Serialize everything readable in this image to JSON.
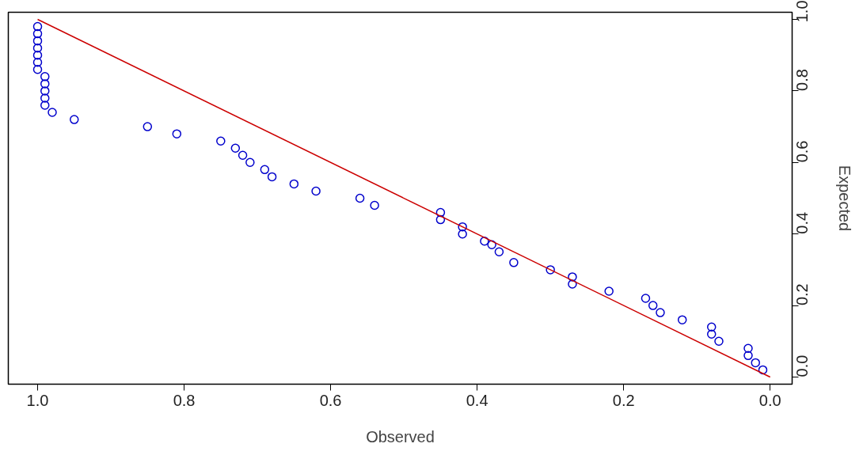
{
  "chart_data": {
    "type": "scatter",
    "xlabel": "Observed",
    "ylabel": "Expected",
    "xlim": [
      1.04,
      -0.03
    ],
    "ylim": [
      -0.02,
      1.02
    ],
    "xticks": [
      {
        "value": 0,
        "label": "0.0"
      },
      0.2,
      0.4,
      0.6,
      0.8,
      {
        "value": 1,
        "label": "1.0"
      }
    ],
    "yticks": [
      {
        "value": 0,
        "label": "0.0"
      },
      0.2,
      0.4,
      0.6,
      0.8,
      {
        "value": 1,
        "label": "1.0"
      }
    ],
    "grid": false,
    "marker": "circle",
    "series": [
      {
        "color": "#0000cc",
        "x": [
          1.0,
          1.0,
          1.0,
          1.0,
          1.0,
          1.0,
          1.0,
          0.99,
          0.99,
          0.99,
          0.99,
          0.99,
          0.98,
          0.95,
          0.85,
          0.81,
          0.75,
          0.73,
          0.72,
          0.71,
          0.69,
          0.68,
          0.65,
          0.62,
          0.56,
          0.54,
          0.45,
          0.45,
          0.42,
          0.42,
          0.39,
          0.38,
          0.37,
          0.35,
          0.3,
          0.27,
          0.27,
          0.22,
          0.17,
          0.16,
          0.15,
          0.12,
          0.08,
          0.08,
          0.07,
          0.03,
          0.03,
          0.02,
          0.01
        ],
        "values": [
          0.98,
          0.96,
          0.94,
          0.92,
          0.9,
          0.88,
          0.86,
          0.84,
          0.82,
          0.8,
          0.78,
          0.76,
          0.74,
          0.72,
          0.7,
          0.68,
          0.66,
          0.64,
          0.62,
          0.6,
          0.58,
          0.56,
          0.54,
          0.52,
          0.5,
          0.48,
          0.46,
          0.44,
          0.42,
          0.4,
          0.38,
          0.37,
          0.35,
          0.32,
          0.3,
          0.28,
          0.26,
          0.24,
          0.22,
          0.2,
          0.18,
          0.16,
          0.14,
          0.12,
          0.1,
          0.08,
          0.06,
          0.04,
          0.02
        ]
      },
      {
        "type": "line",
        "marker": "none",
        "color": "#cc0000",
        "x": [
          0,
          1
        ],
        "values": [
          0,
          1
        ]
      }
    ]
  }
}
